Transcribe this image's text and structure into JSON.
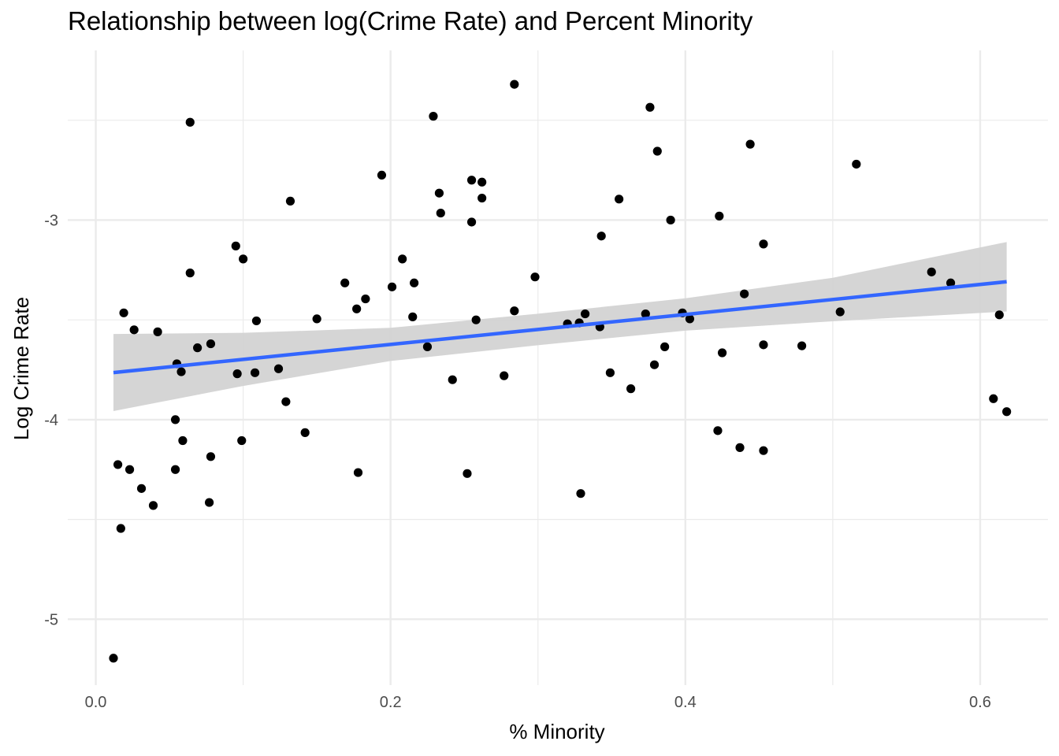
{
  "chart_data": {
    "type": "scatter",
    "title": "Relationship between log(Crime Rate) and Percent Minority",
    "xlabel": "% Minority",
    "ylabel": "Log Crime Rate",
    "xlim": [
      -0.019,
      0.646
    ],
    "ylim": [
      -5.33,
      -2.15
    ],
    "x_ticks": [
      0.0,
      0.2,
      0.4,
      0.6
    ],
    "x_tick_labels": [
      "0.0",
      "0.2",
      "0.4",
      "0.6"
    ],
    "y_ticks": [
      -5,
      -4,
      -3
    ],
    "y_tick_labels": [
      "-5",
      "-4",
      "-3"
    ],
    "grid": true,
    "colors": {
      "points": "#000000",
      "trend_line": "#3366ff",
      "confidence_band": "#d3d3d3",
      "grid": "#ebebeb"
    },
    "series": [
      {
        "points": [
          [
            0.012,
            -5.195
          ],
          [
            0.015,
            -4.225
          ],
          [
            0.017,
            -4.545
          ],
          [
            0.019,
            -3.465
          ],
          [
            0.023,
            -4.25
          ],
          [
            0.026,
            -3.55
          ],
          [
            0.031,
            -4.345
          ],
          [
            0.039,
            -4.43
          ],
          [
            0.042,
            -3.56
          ],
          [
            0.054,
            -4.25
          ],
          [
            0.054,
            -4.0
          ],
          [
            0.055,
            -3.72
          ],
          [
            0.058,
            -3.76
          ],
          [
            0.059,
            -4.105
          ],
          [
            0.064,
            -2.51
          ],
          [
            0.064,
            -3.265
          ],
          [
            0.069,
            -3.64
          ],
          [
            0.077,
            -4.415
          ],
          [
            0.078,
            -3.62
          ],
          [
            0.078,
            -4.185
          ],
          [
            0.095,
            -3.13
          ],
          [
            0.096,
            -3.77
          ],
          [
            0.099,
            -4.105
          ],
          [
            0.1,
            -3.195
          ],
          [
            0.108,
            -3.765
          ],
          [
            0.109,
            -3.505
          ],
          [
            0.124,
            -3.745
          ],
          [
            0.129,
            -3.91
          ],
          [
            0.132,
            -2.905
          ],
          [
            0.142,
            -4.065
          ],
          [
            0.15,
            -3.495
          ],
          [
            0.169,
            -3.315
          ],
          [
            0.177,
            -3.445
          ],
          [
            0.178,
            -4.265
          ],
          [
            0.183,
            -3.395
          ],
          [
            0.194,
            -2.775
          ],
          [
            0.201,
            -3.335
          ],
          [
            0.208,
            -3.195
          ],
          [
            0.215,
            -3.485
          ],
          [
            0.216,
            -3.315
          ],
          [
            0.225,
            -3.635
          ],
          [
            0.229,
            -2.48
          ],
          [
            0.233,
            -2.865
          ],
          [
            0.234,
            -2.965
          ],
          [
            0.242,
            -3.8
          ],
          [
            0.252,
            -4.27
          ],
          [
            0.255,
            -3.01
          ],
          [
            0.255,
            -2.8
          ],
          [
            0.258,
            -3.5
          ],
          [
            0.262,
            -2.89
          ],
          [
            0.262,
            -2.81
          ],
          [
            0.284,
            -2.32
          ],
          [
            0.284,
            -3.455
          ],
          [
            0.277,
            -3.78
          ],
          [
            0.298,
            -3.285
          ],
          [
            0.32,
            -3.52
          ],
          [
            0.328,
            -3.515
          ],
          [
            0.329,
            -4.37
          ],
          [
            0.332,
            -3.47
          ],
          [
            0.342,
            -3.535
          ],
          [
            0.343,
            -3.08
          ],
          [
            0.349,
            -3.765
          ],
          [
            0.355,
            -2.895
          ],
          [
            0.363,
            -3.845
          ],
          [
            0.373,
            -3.47
          ],
          [
            0.376,
            -2.435
          ],
          [
            0.379,
            -3.725
          ],
          [
            0.381,
            -2.655
          ],
          [
            0.386,
            -3.635
          ],
          [
            0.39,
            -3.0
          ],
          [
            0.398,
            -3.465
          ],
          [
            0.403,
            -3.495
          ],
          [
            0.422,
            -4.055
          ],
          [
            0.423,
            -2.98
          ],
          [
            0.425,
            -3.665
          ],
          [
            0.437,
            -4.14
          ],
          [
            0.44,
            -3.37
          ],
          [
            0.444,
            -2.62
          ],
          [
            0.453,
            -3.12
          ],
          [
            0.453,
            -3.625
          ],
          [
            0.453,
            -4.155
          ],
          [
            0.479,
            -3.63
          ],
          [
            0.505,
            -3.46
          ],
          [
            0.516,
            -2.72
          ],
          [
            0.567,
            -3.26
          ],
          [
            0.58,
            -3.315
          ],
          [
            0.609,
            -3.895
          ],
          [
            0.613,
            -3.475
          ],
          [
            0.618,
            -3.96
          ]
        ]
      }
    ],
    "trend": {
      "x": [
        0.012,
        0.1,
        0.2,
        0.3,
        0.4,
        0.5,
        0.618
      ],
      "fit": [
        -3.764,
        -3.698,
        -3.623,
        -3.548,
        -3.473,
        -3.398,
        -3.309
      ],
      "lower": [
        -3.957,
        -3.831,
        -3.706,
        -3.627,
        -3.554,
        -3.507,
        -3.458
      ],
      "upper": [
        -3.571,
        -3.565,
        -3.54,
        -3.469,
        -3.392,
        -3.289,
        -3.11
      ]
    }
  }
}
